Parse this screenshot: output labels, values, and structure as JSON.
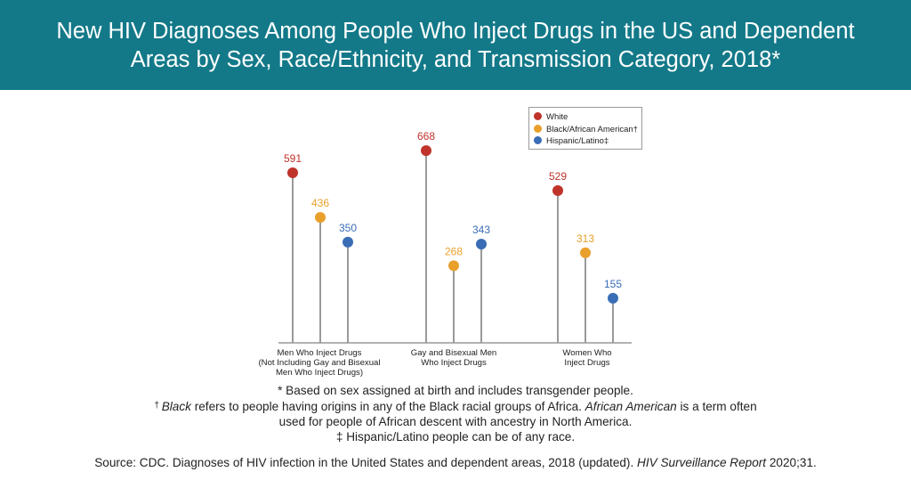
{
  "title_line1": "New HIV Diagnoses Among People Who Inject Drugs in the US and Dependent",
  "title_line2": "Areas by Sex, Race/Ethnicity, and Transmission Category, 2018*",
  "colors": {
    "header_bg": "#137989",
    "White": "#c0332b",
    "Black/African American": "#e8a02b",
    "Hispanic/Latino": "#3a6db5",
    "stem": "#9a9a9a"
  },
  "chart_data": {
    "type": "lollipop",
    "categories": [
      [
        "Men Who Inject Drugs",
        "(Not Including Gay and Bisexual",
        "Men Who Inject Drugs)"
      ],
      [
        "Gay and Bisexual Men",
        "Who Inject Drugs"
      ],
      [
        "Women Who",
        "Inject Drugs"
      ]
    ],
    "series": [
      {
        "name": "White",
        "legend_label": "White",
        "values": [
          591,
          668,
          529
        ]
      },
      {
        "name": "Black/African American",
        "legend_label": "Black/African American†",
        "values": [
          436,
          268,
          313
        ]
      },
      {
        "name": "Hispanic/Latino",
        "legend_label": "Hispanic/Latino‡",
        "values": [
          350,
          343,
          155
        ]
      }
    ],
    "ylim": [
      0,
      700
    ],
    "grid": false,
    "legend_position": "top-right"
  },
  "notes": {
    "line1": "* Based on sex assigned at birth and includes transgender people.",
    "line2_mark": "† ",
    "line2_italic1": "Black",
    "line2_text1": " refers to people having origins in any of the Black racial groups of Africa. ",
    "line2_italic2": "African American",
    "line2_text2": " is a term often",
    "line3": "used for people of African descent with ancestry in North America.",
    "line4": "‡ Hispanic/Latino people can be of any race."
  },
  "source": {
    "prefix": "Source: CDC. Diagnoses of HIV infection in the United States and dependent areas, 2018 (updated). ",
    "italic": "HIV Surveillance Report",
    "suffix": " 2020;31."
  }
}
